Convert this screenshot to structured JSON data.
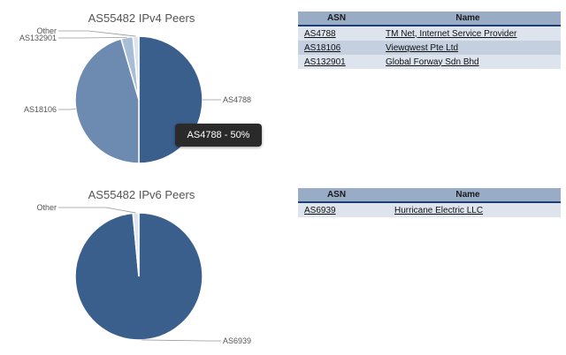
{
  "ipv4": {
    "title": "AS55482 IPv4 Peers",
    "slices": [
      {
        "label": "AS4788",
        "percent": 50,
        "color": "#3a5f8c"
      },
      {
        "label": "AS18106",
        "percent": 45.5,
        "color": "#6d8bb0"
      },
      {
        "label": "AS132901",
        "percent": 3,
        "color": "#a8bdd6"
      },
      {
        "label": "Other",
        "percent": 1.5,
        "color": "#dde6f0"
      }
    ],
    "tooltip": "AS4788 - 50%",
    "table": {
      "headers": [
        "ASN",
        "Name"
      ],
      "rows": [
        {
          "asn": "AS4788",
          "name": "TM Net, Internet Service Provider"
        },
        {
          "asn": "AS18106",
          "name": "Viewqwest Pte Ltd"
        },
        {
          "asn": "AS132901",
          "name": "Global Forway Sdn Bhd"
        }
      ]
    }
  },
  "ipv6": {
    "title": "AS55482 IPv6 Peers",
    "slices": [
      {
        "label": "AS6939",
        "percent": 98.5,
        "color": "#3a5f8c"
      },
      {
        "label": "Other",
        "percent": 1.5,
        "color": "#dde6f0"
      }
    ],
    "table": {
      "headers": [
        "ASN",
        "Name"
      ],
      "rows": [
        {
          "asn": "AS6939",
          "name": "Hurricane Electric LLC"
        }
      ]
    }
  },
  "chart_data": [
    {
      "type": "pie",
      "title": "AS55482 IPv4 Peers",
      "categories": [
        "AS4788",
        "AS18106",
        "AS132901",
        "Other"
      ],
      "values": [
        50,
        45.5,
        3,
        1.5
      ]
    },
    {
      "type": "pie",
      "title": "AS55482 IPv6 Peers",
      "categories": [
        "AS6939",
        "Other"
      ],
      "values": [
        98.5,
        1.5
      ]
    }
  ]
}
